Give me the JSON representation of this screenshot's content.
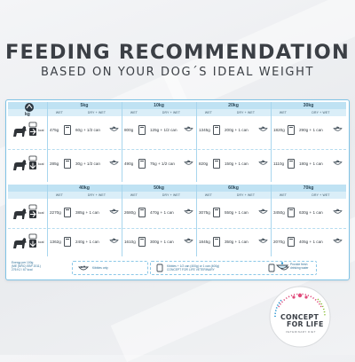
{
  "header": {
    "title": "FEEDING RECOMMENDATION",
    "subtitle": "BASED ON YOUR DOG´S IDEAL WEIGHT"
  },
  "table": {
    "kg_label": "kg",
    "kcal_label": "kcal",
    "sub_headers": {
      "wet": "WET",
      "dry_wet": "DRY + WET"
    },
    "panels": [
      {
        "weights": [
          "5kg",
          "10kg",
          "20kg",
          "30kg"
        ],
        "rows": [
          {
            "level": "high",
            "cells": [
              {
                "wet": "475g",
                "mix": "60g + 1/2 can"
              },
              {
                "wet": "800g",
                "mix": "125g + 1/2 can"
              },
              {
                "wet": "1345g",
                "mix": "200g + 1 can"
              },
              {
                "wet": "1820g",
                "mix": "290g + 1 can"
              }
            ]
          },
          {
            "level": "low",
            "cells": [
              {
                "wet": "285g",
                "mix": "30g + 1/2 can"
              },
              {
                "wet": "490g",
                "mix": "75g + 1/2 can"
              },
              {
                "wet": "820g",
                "mix": "150g + 1 can"
              },
              {
                "wet": "1110g",
                "mix": "180g + 1 can"
              }
            ]
          }
        ]
      },
      {
        "weights": [
          "40kg",
          "50kg",
          "60kg",
          "70kg"
        ],
        "rows": [
          {
            "level": "high",
            "cells": [
              {
                "wet": "2270g",
                "mix": "385g + 1 can"
              },
              {
                "wet": "2680g",
                "mix": "470g + 1 can"
              },
              {
                "wet": "3075g",
                "mix": "550g + 1 can"
              },
              {
                "wet": "3450g",
                "mix": "630g + 1 can"
              }
            ]
          },
          {
            "level": "low",
            "cells": [
              {
                "wet": "1362g",
                "mix": "240g + 1 can"
              },
              {
                "wet": "1610g",
                "mix": "300g + 1 can"
              },
              {
                "wet": "1845g",
                "mix": "350g + 1 can"
              },
              {
                "wet": "2070g",
                "mix": "405g + 1 can"
              }
            ]
          }
        ]
      }
    ],
    "footer": {
      "energy_note": [
        "Energy per 100g",
        "(ME (NRC) EBP 2011)",
        "276 KJ / 67 kcal"
      ],
      "box1_note": "Kibbles only",
      "box2_note": [
        "Kibbles + 1/2 can (400g) or 1 can (400g)",
        "CONCEPT FOR LIFE VETERINARY"
      ],
      "box3_note": [
        "Provide fresh",
        "drinking water"
      ]
    }
  },
  "brand": {
    "line1": "CONCEPT",
    "line2": "FOR LIFE",
    "tagline": "VETERINARY DIET"
  },
  "colors": {
    "accent": "#1e8fcf",
    "header_band": "#bfe2f3",
    "sub_band": "#daeef8",
    "border": "#7fc3e6",
    "text": "#3b3f45"
  }
}
